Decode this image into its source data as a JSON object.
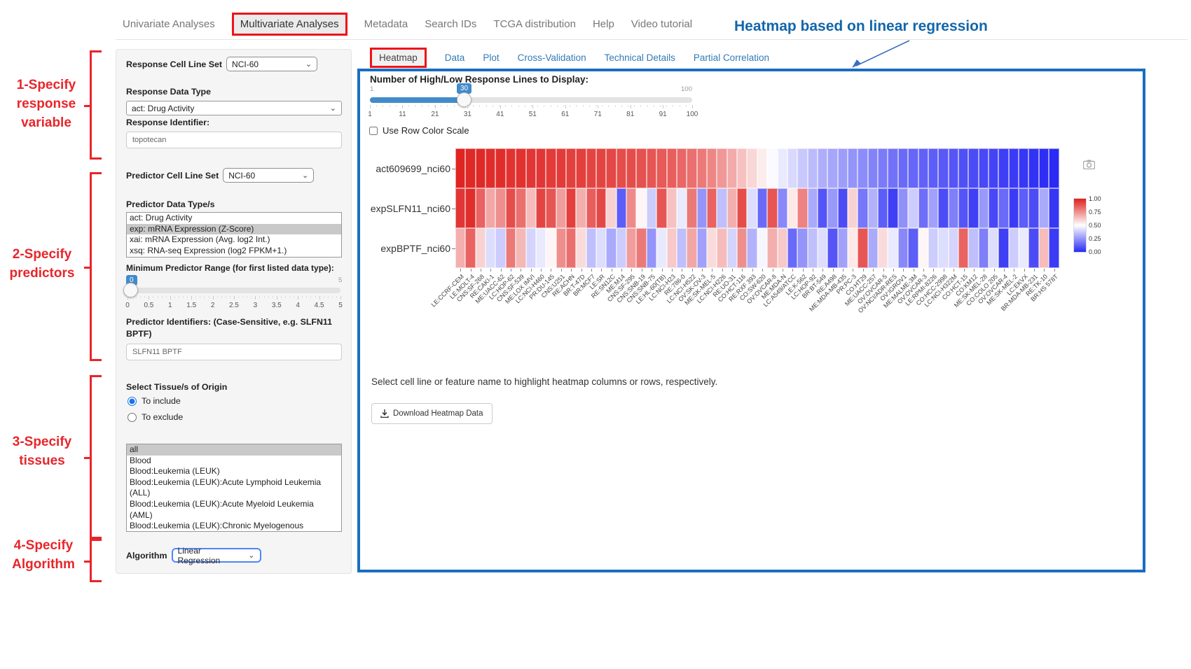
{
  "nav": {
    "items": [
      {
        "label": "Univariate Analyses",
        "active": false,
        "boxed": false
      },
      {
        "label": "Multivariate Analyses",
        "active": true,
        "boxed": true
      },
      {
        "label": "Metadata",
        "active": false,
        "boxed": false
      },
      {
        "label": "Search IDs",
        "active": false,
        "boxed": false
      },
      {
        "label": "TCGA distribution",
        "active": false,
        "boxed": false
      },
      {
        "label": "Help",
        "active": false,
        "boxed": false
      },
      {
        "label": "Video tutorial",
        "active": false,
        "boxed": false
      }
    ]
  },
  "annotations": {
    "heading": "Heatmap based on linear regression",
    "steps": [
      {
        "text": "1-Specify\nresponse\nvariable"
      },
      {
        "text": "2-Specify\npredictors"
      },
      {
        "text": "3-Specify\ntissues"
      },
      {
        "text": "4-Specify\nAlgorithm"
      }
    ]
  },
  "sidebar": {
    "response_cell_line_set": {
      "label": "Response Cell Line Set",
      "value": "NCI-60"
    },
    "response_data_type": {
      "label": "Response Data Type",
      "value": "act: Drug Activity"
    },
    "response_identifier": {
      "label": "Response Identifier:",
      "value": "topotecan"
    },
    "predictor_cell_line_set": {
      "label": "Predictor Cell Line Set",
      "value": "NCI-60"
    },
    "predictor_data_types": {
      "label": "Predictor Data Type/s",
      "options": [
        "act: Drug Activity",
        "exp: mRNA Expression (Z-Score)",
        "xai: mRNA Expression (Avg. log2 Int.)",
        "xsq: RNA-seq Expression (log2 FPKM+1.)"
      ],
      "selected_index": 1
    },
    "min_predictor_range": {
      "label": "Minimum Predictor Range (for first listed data type):",
      "value": "0",
      "min": 0,
      "max": 5,
      "max_label": "5",
      "ticks": [
        "0",
        "0.5",
        "1",
        "1.5",
        "2",
        "2.5",
        "3",
        "3.5",
        "4",
        "4.5",
        "5"
      ]
    },
    "predictor_identifiers": {
      "label": "Predictor Identifiers: (Case-Sensitive, e.g. SLFN11 BPTF)",
      "value": "SLFN11 BPTF"
    },
    "tissue": {
      "label": "Select Tissue/s of Origin",
      "include_label": "To include",
      "exclude_label": "To exclude",
      "include_selected": true,
      "options": [
        "all",
        "Blood",
        "Blood:Leukemia (LEUK)",
        "Blood:Leukemia (LEUK):Acute Lymphoid Leukemia (ALL)",
        "Blood:Leukemia (LEUK):Acute Myeloid Leukemia (AML)",
        "Blood:Leukemia (LEUK):Chronic Myelogenous Leukemia (CML)"
      ],
      "selected_index": 0
    },
    "algorithm": {
      "label": "Algorithm",
      "value": "Linear Regression"
    }
  },
  "main": {
    "tabs": [
      {
        "label": "Heatmap",
        "active": true,
        "boxed": true
      },
      {
        "label": "Data",
        "active": false,
        "boxed": false
      },
      {
        "label": "Plot",
        "active": false,
        "boxed": false
      },
      {
        "label": "Cross-Validation",
        "active": false,
        "boxed": false
      },
      {
        "label": "Technical Details",
        "active": false,
        "boxed": false
      },
      {
        "label": "Partial Correlation",
        "active": false,
        "boxed": false
      }
    ],
    "lines_slider": {
      "label": "Number of High/Low Response Lines to Display:",
      "min": 1,
      "max": 100,
      "value": "30",
      "min_label": "1",
      "max_label": "100",
      "ticks": [
        "1",
        "11",
        "21",
        "31",
        "41",
        "51",
        "61",
        "71",
        "81",
        "91",
        "100"
      ]
    },
    "row_color_scale": {
      "label": "Use Row Color Scale",
      "checked": false
    },
    "hint": "Select cell line or feature name to highlight heatmap columns or rows, respectively.",
    "download_button": "Download Heatmap Data"
  },
  "chart_data": {
    "type": "heatmap",
    "title": "",
    "x_rotation": -45,
    "legend_position": "right",
    "legend_ticks": [
      "1.00",
      "0.75",
      "0.50",
      "0.25",
      "0.00"
    ],
    "color_scale": {
      "min": 0,
      "mid": 0.5,
      "max": 1,
      "min_color": "#2a2af5",
      "mid_color": "#ffffff",
      "max_color": "#de201e"
    },
    "columns": [
      "LE:CCRF-CEM",
      "LE:MOLT-4",
      "CNS:SF-268",
      "RE:CAKI-1",
      "ME:UACC-62",
      "LC:HOP-62",
      "CNS:SF-539",
      "ME:LOX IMVI",
      "LC:NCI-H460",
      "PR:DU-145",
      "CNS:U251",
      "RE:ACHN",
      "BR:T-47D",
      "BR:MCF7",
      "LE:SR",
      "RE:SN12C",
      "ME:M14",
      "CNS:SF-295",
      "CNS:SNB-19",
      "CNS:SNB-75",
      "LE:HL-60(TB)",
      "LC:NCI-H23",
      "RE:786-0",
      "LC:NCI-H522",
      "OV:SK-OV-3",
      "ME:SK-MEL-5",
      "LC:NCI-H226",
      "RE:UO-31",
      "CO:HCT-116",
      "RE:RXF 393",
      "CO:SW-620",
      "OV:OVCAR-8",
      "ME:MDA-N",
      "LC:A549/ATCC",
      "LE:K-562",
      "LC:HOP-92",
      "BR:BT-549",
      "RE:A498",
      "ME:MDA-MB-435",
      "PR:PC-3",
      "CO:HT29",
      "ME:UACC-257",
      "OV:OVCAR-5",
      "OV:NCI/ADR-RES",
      "OV:IGROV1",
      "ME:MALME-3M",
      "OV:OVCAR-3",
      "LE:RPMI-8226",
      "CO:HCC-2998",
      "LC:NCI-H322M",
      "CO:HCT-15",
      "CO:KM12",
      "ME:SK-MEL-28",
      "CO:COLO 205",
      "OV:OVCAR-4",
      "ME:SK-MEL-2",
      "LC:EKVX",
      "BR:MDA-MB-231",
      "RE:TK-10",
      "BR:HS 578T"
    ],
    "series": [
      {
        "name": "act609699_nci60",
        "values": [
          0.99,
          0.98,
          0.98,
          0.97,
          0.97,
          0.96,
          0.96,
          0.95,
          0.95,
          0.94,
          0.94,
          0.93,
          0.93,
          0.92,
          0.92,
          0.91,
          0.9,
          0.9,
          0.89,
          0.88,
          0.87,
          0.86,
          0.84,
          0.82,
          0.8,
          0.77,
          0.73,
          0.69,
          0.64,
          0.59,
          0.54,
          0.49,
          0.45,
          0.41,
          0.37,
          0.34,
          0.31,
          0.29,
          0.27,
          0.25,
          0.23,
          0.21,
          0.19,
          0.17,
          0.15,
          0.14,
          0.13,
          0.12,
          0.11,
          0.1,
          0.09,
          0.08,
          0.07,
          0.06,
          0.05,
          0.04,
          0.03,
          0.02,
          0.01,
          0.0
        ]
      },
      {
        "name": "expSLFN11_nci60",
        "values": [
          0.95,
          0.97,
          0.85,
          0.7,
          0.75,
          0.9,
          0.82,
          0.65,
          0.92,
          0.88,
          0.72,
          0.93,
          0.68,
          0.86,
          0.91,
          0.6,
          0.12,
          0.76,
          0.52,
          0.38,
          0.88,
          0.64,
          0.45,
          0.8,
          0.25,
          0.85,
          0.35,
          0.68,
          0.9,
          0.42,
          0.15,
          0.88,
          0.22,
          0.55,
          0.78,
          0.3,
          0.1,
          0.26,
          0.08,
          0.6,
          0.18,
          0.32,
          0.12,
          0.05,
          0.24,
          0.38,
          0.16,
          0.28,
          0.08,
          0.2,
          0.1,
          0.05,
          0.26,
          0.07,
          0.15,
          0.04,
          0.12,
          0.08,
          0.3,
          0.03
        ]
      },
      {
        "name": "expBPTF_nci60",
        "values": [
          0.68,
          0.85,
          0.6,
          0.42,
          0.38,
          0.8,
          0.66,
          0.4,
          0.45,
          0.52,
          0.75,
          0.82,
          0.58,
          0.35,
          0.42,
          0.3,
          0.38,
          0.72,
          0.8,
          0.25,
          0.45,
          0.62,
          0.35,
          0.7,
          0.28,
          0.58,
          0.65,
          0.4,
          0.75,
          0.32,
          0.48,
          0.68,
          0.62,
          0.15,
          0.25,
          0.35,
          0.42,
          0.1,
          0.28,
          0.55,
          0.88,
          0.3,
          0.58,
          0.45,
          0.22,
          0.12,
          0.52,
          0.38,
          0.42,
          0.4,
          0.85,
          0.35,
          0.2,
          0.42,
          0.05,
          0.38,
          0.45,
          0.08,
          0.65,
          0.04
        ]
      }
    ]
  }
}
